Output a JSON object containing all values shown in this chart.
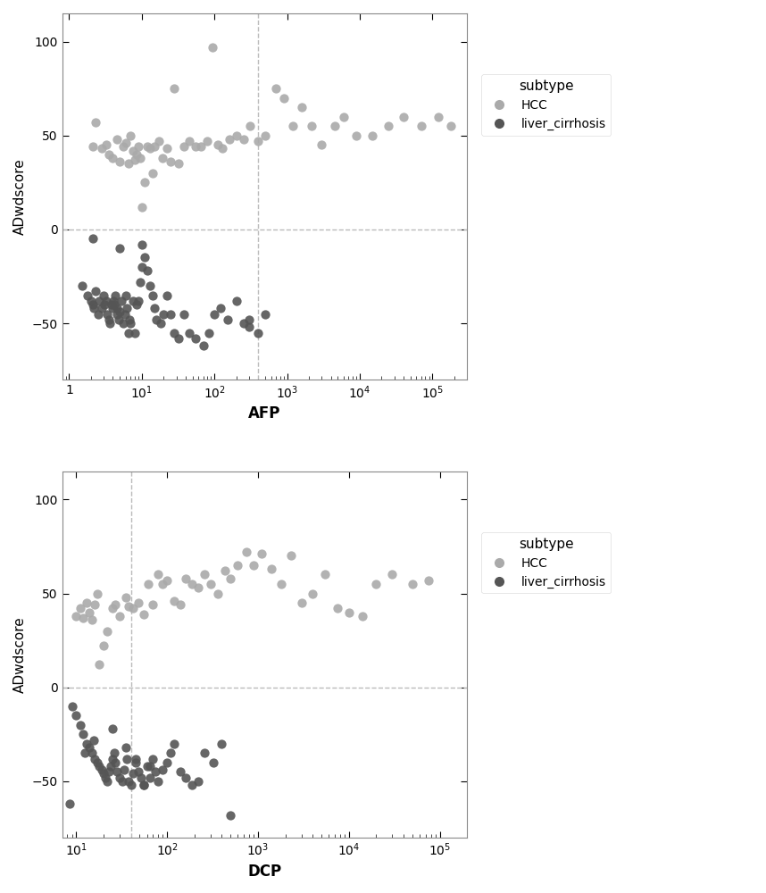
{
  "hcc_afp": [
    2.1,
    2.3,
    2.8,
    3.2,
    3.5,
    4.0,
    4.5,
    5.0,
    5.5,
    6.0,
    6.5,
    7.0,
    7.5,
    8.0,
    8.5,
    9.0,
    9.5,
    10.0,
    11.0,
    12.0,
    13.0,
    14.0,
    15.0,
    17.0,
    19.0,
    22.0,
    25.0,
    28.0,
    32.0,
    38.0,
    45.0,
    55.0,
    65.0,
    80.0,
    95.0,
    110.0,
    130.0,
    160.0,
    200.0,
    250.0,
    310.0,
    400.0,
    500.0,
    700.0,
    900.0,
    1200.0,
    1600.0,
    2200.0,
    3000.0,
    4500.0,
    6000.0,
    9000.0,
    15000.0,
    25000.0,
    40000.0,
    70000.0,
    120000.0,
    180000.0
  ],
  "hcc_adwd": [
    44.0,
    57.0,
    43.0,
    45.0,
    40.0,
    38.0,
    48.0,
    36.0,
    44.0,
    46.0,
    35.0,
    50.0,
    42.0,
    37.0,
    40.0,
    44.0,
    38.0,
    12.0,
    25.0,
    44.0,
    43.0,
    30.0,
    44.0,
    47.0,
    38.0,
    43.0,
    36.0,
    75.0,
    35.0,
    44.0,
    47.0,
    44.0,
    44.0,
    47.0,
    97.0,
    45.0,
    43.0,
    48.0,
    50.0,
    48.0,
    55.0,
    47.0,
    50.0,
    75.0,
    70.0,
    55.0,
    65.0,
    55.0,
    45.0,
    55.0,
    60.0,
    50.0,
    50.0,
    55.0,
    60.0,
    55.0,
    60.0,
    55.0
  ],
  "lc_afp": [
    1.5,
    1.8,
    2.0,
    2.1,
    2.2,
    2.3,
    2.5,
    2.6,
    2.8,
    3.0,
    3.1,
    3.2,
    3.3,
    3.5,
    3.6,
    3.8,
    4.0,
    4.1,
    4.2,
    4.3,
    4.5,
    4.6,
    4.8,
    5.0,
    5.2,
    5.5,
    5.8,
    6.0,
    6.2,
    6.5,
    6.8,
    7.0,
    7.5,
    8.0,
    8.5,
    9.0,
    9.5,
    10.0,
    11.0,
    12.0,
    13.0,
    14.0,
    15.0,
    16.0,
    18.0,
    20.0,
    22.0,
    25.0,
    28.0,
    32.0,
    38.0,
    45.0,
    55.0,
    70.0,
    85.0,
    100.0,
    120.0,
    150.0,
    200.0,
    250.0,
    300.0,
    400.0,
    500.0,
    2.1,
    5.0,
    10.0,
    300.0
  ],
  "lc_adwd": [
    -30.0,
    -35.0,
    -38.0,
    -40.0,
    -42.0,
    -33.0,
    -45.0,
    -38.0,
    -42.0,
    -35.0,
    -40.0,
    -38.0,
    -45.0,
    -48.0,
    -50.0,
    -40.0,
    -42.0,
    -38.0,
    -40.0,
    -35.0,
    -45.0,
    -42.0,
    -48.0,
    -44.0,
    -38.0,
    -50.0,
    -45.0,
    -35.0,
    -42.0,
    -55.0,
    -48.0,
    -50.0,
    -38.0,
    -55.0,
    -40.0,
    -38.0,
    -28.0,
    -20.0,
    -15.0,
    -22.0,
    -30.0,
    -35.0,
    -42.0,
    -48.0,
    -50.0,
    -45.0,
    -35.0,
    -45.0,
    -55.0,
    -58.0,
    -45.0,
    -55.0,
    -58.0,
    -62.0,
    -55.0,
    -45.0,
    -42.0,
    -48.0,
    -38.0,
    -50.0,
    -48.0,
    -55.0,
    -45.0,
    -5.0,
    -10.0,
    -8.0,
    -52.0
  ],
  "hcc_dcp": [
    10.0,
    11.0,
    12.0,
    13.0,
    14.0,
    15.0,
    16.0,
    17.0,
    18.0,
    20.0,
    22.0,
    25.0,
    27.0,
    30.0,
    35.0,
    38.0,
    42.0,
    48.0,
    55.0,
    62.0,
    70.0,
    80.0,
    90.0,
    100.0,
    120.0,
    140.0,
    160.0,
    190.0,
    220.0,
    260.0,
    300.0,
    360.0,
    430.0,
    500.0,
    600.0,
    750.0,
    900.0,
    1100.0,
    1400.0,
    1800.0,
    2300.0,
    3000.0,
    4000.0,
    5500.0,
    7500.0,
    10000.0,
    14000.0,
    20000.0,
    30000.0,
    50000.0,
    75000.0
  ],
  "hcc_dcp_adwd": [
    38.0,
    42.0,
    37.0,
    45.0,
    40.0,
    36.0,
    44.0,
    50.0,
    12.0,
    22.0,
    30.0,
    42.0,
    44.0,
    38.0,
    48.0,
    43.0,
    42.0,
    45.0,
    39.0,
    55.0,
    44.0,
    60.0,
    55.0,
    57.0,
    46.0,
    44.0,
    58.0,
    55.0,
    53.0,
    60.0,
    55.0,
    50.0,
    62.0,
    58.0,
    65.0,
    72.0,
    65.0,
    71.0,
    63.0,
    55.0,
    70.0,
    45.0,
    50.0,
    60.0,
    42.0,
    40.0,
    38.0,
    55.0,
    60.0,
    55.0,
    57.0
  ],
  "lc_dcp": [
    9.0,
    10.0,
    11.0,
    12.0,
    13.0,
    14.0,
    15.0,
    16.0,
    17.0,
    18.0,
    19.0,
    20.0,
    21.0,
    22.0,
    23.0,
    24.0,
    25.0,
    26.0,
    27.0,
    28.0,
    30.0,
    32.0,
    34.0,
    36.0,
    38.0,
    40.0,
    42.0,
    45.0,
    48.0,
    52.0,
    56.0,
    60.0,
    65.0,
    70.0,
    75.0,
    80.0,
    90.0,
    100.0,
    110.0,
    120.0,
    140.0,
    160.0,
    190.0,
    220.0,
    260.0,
    320.0,
    400.0,
    500.0,
    8.5,
    12.5,
    15.5,
    25.0,
    35.0,
    45.0,
    55.0,
    65.0
  ],
  "lc_dcp_adwd": [
    -10.0,
    -15.0,
    -20.0,
    -25.0,
    -30.0,
    -32.0,
    -35.0,
    -38.0,
    -40.0,
    -42.0,
    -44.0,
    -46.0,
    -48.0,
    -50.0,
    -45.0,
    -42.0,
    -38.0,
    -35.0,
    -40.0,
    -45.0,
    -48.0,
    -50.0,
    -44.0,
    -38.0,
    -50.0,
    -52.0,
    -46.0,
    -40.0,
    -45.0,
    -48.0,
    -52.0,
    -42.0,
    -48.0,
    -38.0,
    -45.0,
    -50.0,
    -44.0,
    -40.0,
    -35.0,
    -30.0,
    -45.0,
    -48.0,
    -52.0,
    -50.0,
    -35.0,
    -40.0,
    -30.0,
    -68.0,
    -62.0,
    -35.0,
    -28.0,
    -22.0,
    -32.0,
    -38.0,
    -52.0,
    -42.0
  ],
  "afp_cutoff": 400.0,
  "dcp_cutoff": 40.0,
  "adwd_cutoff": 0.0,
  "hcc_color": "#aaaaaa",
  "lc_color": "#555555",
  "afp_xlim": [
    0.8,
    300000.0
  ],
  "dcp_xlim": [
    7.0,
    200000.0
  ],
  "ylim": [
    -80.0,
    115.0
  ],
  "yticks": [
    -50,
    0,
    50,
    100
  ],
  "afp_xticks": [
    1,
    10,
    100,
    1000,
    10000,
    100000
  ],
  "dcp_xticks": [
    10,
    100,
    1000,
    10000,
    100000
  ],
  "background_color": "#ffffff",
  "legend_title": "subtype",
  "legend_hcc": "HCC",
  "legend_lc": "liver_cirrhosis",
  "xlabel_afp": "AFP",
  "xlabel_dcp": "DCP",
  "ylabel": "ADwdscore"
}
